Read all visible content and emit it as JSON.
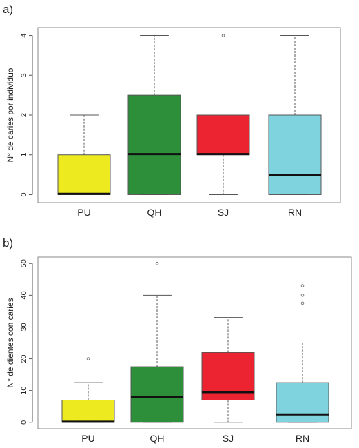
{
  "chart_data": [
    {
      "panel_label": "a)",
      "type": "boxplot",
      "ylabel": "N° de caries por individuo",
      "ylim": [
        -0.2,
        4.2
      ],
      "yticks": [
        0,
        1,
        2,
        3,
        4
      ],
      "categories": [
        "PU",
        "QH",
        "SJ",
        "RN"
      ],
      "colors": [
        "#eeea20",
        "#2e8f3b",
        "#ec2330",
        "#7fd3df"
      ],
      "boxes": [
        {
          "min": 0,
          "q1": 0,
          "median": 0.02,
          "q3": 1,
          "max": 2,
          "outliers": []
        },
        {
          "min": 0,
          "q1": 0,
          "median": 1.02,
          "q3": 2.5,
          "max": 4,
          "outliers": []
        },
        {
          "min": 0,
          "q1": 1,
          "median": 1.02,
          "q3": 2,
          "max": 2,
          "outliers": [
            4
          ]
        },
        {
          "min": 0,
          "q1": 0,
          "median": 0.5,
          "q3": 2,
          "max": 4,
          "outliers": []
        }
      ]
    },
    {
      "panel_label": "b)",
      "type": "boxplot",
      "ylabel": "N° de dientes con caries",
      "ylim": [
        -2,
        52
      ],
      "yticks": [
        0,
        10,
        20,
        30,
        40,
        50
      ],
      "categories": [
        "PU",
        "QH",
        "SJ",
        "RN"
      ],
      "colors": [
        "#eeea20",
        "#2e8f3b",
        "#ec2330",
        "#7fd3df"
      ],
      "boxes": [
        {
          "min": 0,
          "q1": 0,
          "median": 0.2,
          "q3": 7,
          "max": 12.5,
          "outliers": [
            20
          ]
        },
        {
          "min": 0,
          "q1": 0,
          "median": 8,
          "q3": 17.5,
          "max": 40,
          "outliers": [
            50
          ]
        },
        {
          "min": 0,
          "q1": 7,
          "median": 9.5,
          "q3": 22,
          "max": 33,
          "outliers": []
        },
        {
          "min": 0,
          "q1": 0,
          "median": 2.5,
          "q3": 12.5,
          "max": 25,
          "outliers": [
            37.5,
            40,
            43
          ]
        }
      ]
    }
  ]
}
